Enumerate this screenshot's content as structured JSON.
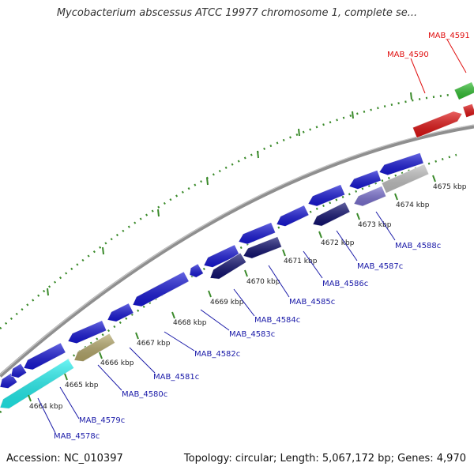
{
  "header": {
    "title": "Mycobacterium abscessus ATCC 19977 chromosome 1, complete se..."
  },
  "footer": {
    "accession": "Accession: NC_010397",
    "topology": "Topology: circular; Length: 5,067,172 bp; Genes: 4,970"
  },
  "ticks": [
    {
      "label": "4664 kbp"
    },
    {
      "label": "4665 kbp"
    },
    {
      "label": "4666 kbp"
    },
    {
      "label": "4667 kbp"
    },
    {
      "label": "4668 kbp"
    },
    {
      "label": "4669 kbp"
    },
    {
      "label": "4670 kbp"
    },
    {
      "label": "4671 kbp"
    },
    {
      "label": "4672 kbp"
    },
    {
      "label": "4673 kbp"
    },
    {
      "label": "4674 kbp"
    },
    {
      "label": "4675 kbp"
    }
  ],
  "gene_labels": [
    {
      "text": "MAB_4578c",
      "color": "#1a1aa8"
    },
    {
      "text": "MAB_4579c",
      "color": "#1a1aa8"
    },
    {
      "text": "MAB_4580c",
      "color": "#1a1aa8"
    },
    {
      "text": "MAB_4581c",
      "color": "#1a1aa8"
    },
    {
      "text": "MAB_4582c",
      "color": "#1a1aa8"
    },
    {
      "text": "MAB_4583c",
      "color": "#1a1aa8"
    },
    {
      "text": "MAB_4584c",
      "color": "#1a1aa8"
    },
    {
      "text": "MAB_4585c",
      "color": "#1a1aa8"
    },
    {
      "text": "MAB_4586c",
      "color": "#1a1aa8"
    },
    {
      "text": "MAB_4587c",
      "color": "#1a1aa8"
    },
    {
      "text": "MAB_4588c",
      "color": "#1a1aa8"
    },
    {
      "text": "MAB_4590",
      "color": "#e01010"
    },
    {
      "text": "MAB_4591",
      "color": "#e01010"
    }
  ],
  "colors": {
    "backbone": "#8f8f8f",
    "gc_skew_dots": "#3a8a2a",
    "blue": "#1616d6",
    "navy": "#101070",
    "cyan": "#20f0f0",
    "khaki": "#b5a86a",
    "lavender": "#7a70d0",
    "grey": "#c0c0c0",
    "red": "#e01010",
    "green": "#30c030"
  }
}
